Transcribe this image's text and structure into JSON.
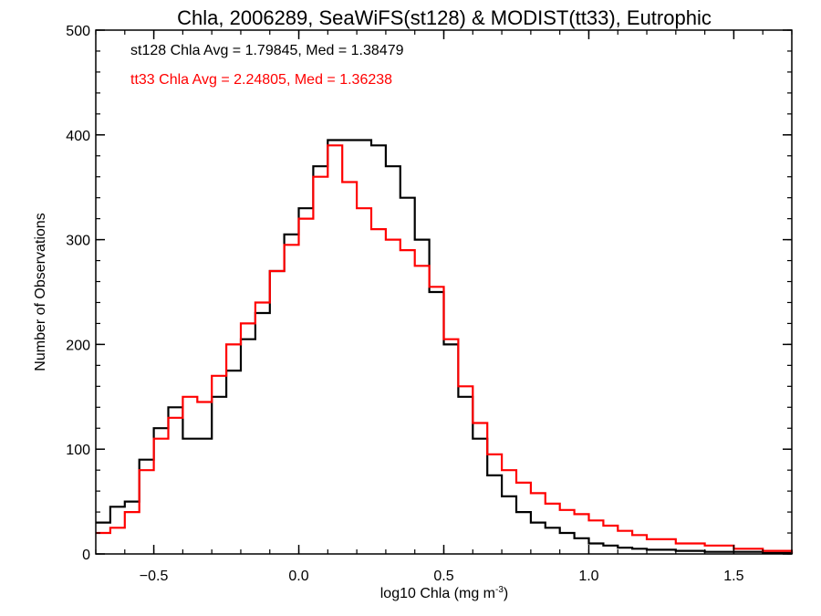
{
  "chart_data": {
    "type": "histogram-step",
    "title": "Chla, 2006289, SeaWiFS(st128) & MODIST(tt33), Eutrophic",
    "xlabel": "log10 Chla (mg m",
    "xlabel_sup": "-3",
    "xlabel_close": ")",
    "ylabel": "Number of Observations",
    "xlim": [
      -0.7,
      1.7
    ],
    "ylim": [
      0,
      500
    ],
    "xticks": [
      -0.5,
      0.0,
      0.5,
      1.0,
      1.5
    ],
    "xtick_labels": [
      "−0.5",
      "0.0",
      "0.5",
      "1.0",
      "1.5"
    ],
    "yticks": [
      0,
      100,
      200,
      300,
      400,
      500
    ],
    "ytick_labels": [
      "0",
      "100",
      "200",
      "300",
      "400",
      "500"
    ],
    "grid": false,
    "annotations": [
      {
        "text": "st128 Chla Avg = 1.79845, Med = 1.38479",
        "color": "#000000"
      },
      {
        "text": "tt33 Chla Avg = 2.24805, Med = 1.36238",
        "color": "#ff0000"
      }
    ],
    "series": [
      {
        "color": "#000000",
        "x": [
          -0.7,
          -0.65,
          -0.6,
          -0.55,
          -0.5,
          -0.45,
          -0.4,
          -0.35,
          -0.3,
          -0.25,
          -0.2,
          -0.15,
          -0.1,
          -0.05,
          0.0,
          0.05,
          0.1,
          0.15,
          0.2,
          0.25,
          0.3,
          0.35,
          0.4,
          0.45,
          0.5,
          0.55,
          0.6,
          0.65,
          0.7,
          0.75,
          0.8,
          0.85,
          0.9,
          0.95,
          1.0,
          1.05,
          1.1,
          1.15,
          1.2,
          1.3,
          1.4,
          1.5,
          1.6,
          1.7
        ],
        "y": [
          30,
          45,
          50,
          90,
          120,
          140,
          110,
          110,
          150,
          175,
          205,
          230,
          270,
          305,
          330,
          370,
          395,
          395,
          395,
          390,
          370,
          340,
          300,
          250,
          200,
          150,
          110,
          75,
          55,
          40,
          30,
          25,
          20,
          15,
          10,
          8,
          6,
          5,
          4,
          3,
          2,
          2,
          1,
          0
        ]
      },
      {
        "color": "#ff0000",
        "x": [
          -0.7,
          -0.65,
          -0.6,
          -0.55,
          -0.5,
          -0.45,
          -0.4,
          -0.35,
          -0.3,
          -0.25,
          -0.2,
          -0.15,
          -0.1,
          -0.05,
          0.0,
          0.05,
          0.1,
          0.15,
          0.2,
          0.25,
          0.3,
          0.35,
          0.4,
          0.45,
          0.5,
          0.55,
          0.6,
          0.65,
          0.7,
          0.75,
          0.8,
          0.85,
          0.9,
          0.95,
          1.0,
          1.05,
          1.1,
          1.15,
          1.2,
          1.3,
          1.4,
          1.5,
          1.6,
          1.7
        ],
        "y": [
          20,
          25,
          40,
          80,
          110,
          130,
          150,
          145,
          170,
          200,
          220,
          240,
          270,
          295,
          320,
          360,
          390,
          355,
          330,
          310,
          300,
          290,
          275,
          255,
          205,
          160,
          125,
          95,
          80,
          68,
          58,
          48,
          42,
          38,
          32,
          27,
          22,
          18,
          14,
          10,
          8,
          5,
          3,
          1
        ]
      }
    ]
  }
}
